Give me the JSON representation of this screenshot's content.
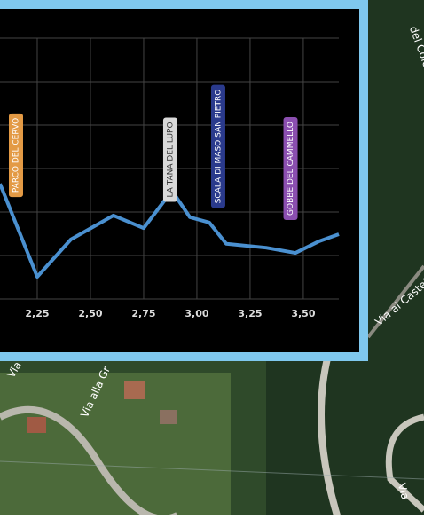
{
  "chart_data": {
    "type": "line",
    "xlim": [
      2.075,
      3.667
    ],
    "ylim": [
      0,
      6
    ],
    "xticks": [
      {
        "value": 2.25,
        "label": "2,25"
      },
      {
        "value": 2.5,
        "label": "2,50"
      },
      {
        "value": 2.75,
        "label": "2,75"
      },
      {
        "value": 3.0,
        "label": "3,00"
      },
      {
        "value": 3.25,
        "label": "3,25"
      },
      {
        "value": 3.5,
        "label": "3,50"
      }
    ],
    "yticks": [
      0,
      1,
      2,
      3,
      4,
      5,
      6
    ],
    "grid": true,
    "series": [
      {
        "color": "#4a90d0",
        "x": [
          2.075,
          2.25,
          2.408,
          2.608,
          2.75,
          2.883,
          2.967,
          3.058,
          3.138,
          3.325,
          3.463,
          3.575,
          3.667
        ],
        "values": [
          2.65,
          0.51,
          1.37,
          1.92,
          1.63,
          2.49,
          1.88,
          1.76,
          1.27,
          1.18,
          1.06,
          1.33,
          1.49
        ]
      }
    ],
    "annotations": [
      {
        "text": "PARCO DEL CERVO",
        "x": 2.15,
        "color": "#e39a45"
      },
      {
        "text": "LA TANA DEL LUPO",
        "x": 2.875,
        "color": "#d9d9d9"
      },
      {
        "text": "SCALA DI MASO SAN PIETRO",
        "x": 3.1,
        "color": "#2a3a8c"
      },
      {
        "text": "GOBBE DEL CAMMELLO",
        "x": 3.44,
        "color": "#8b4fb0"
      }
    ]
  },
  "map": {
    "labels": [
      "del Cole",
      "Via ai Castell",
      "Via Ri",
      "Via alla Gr",
      "Via"
    ]
  }
}
